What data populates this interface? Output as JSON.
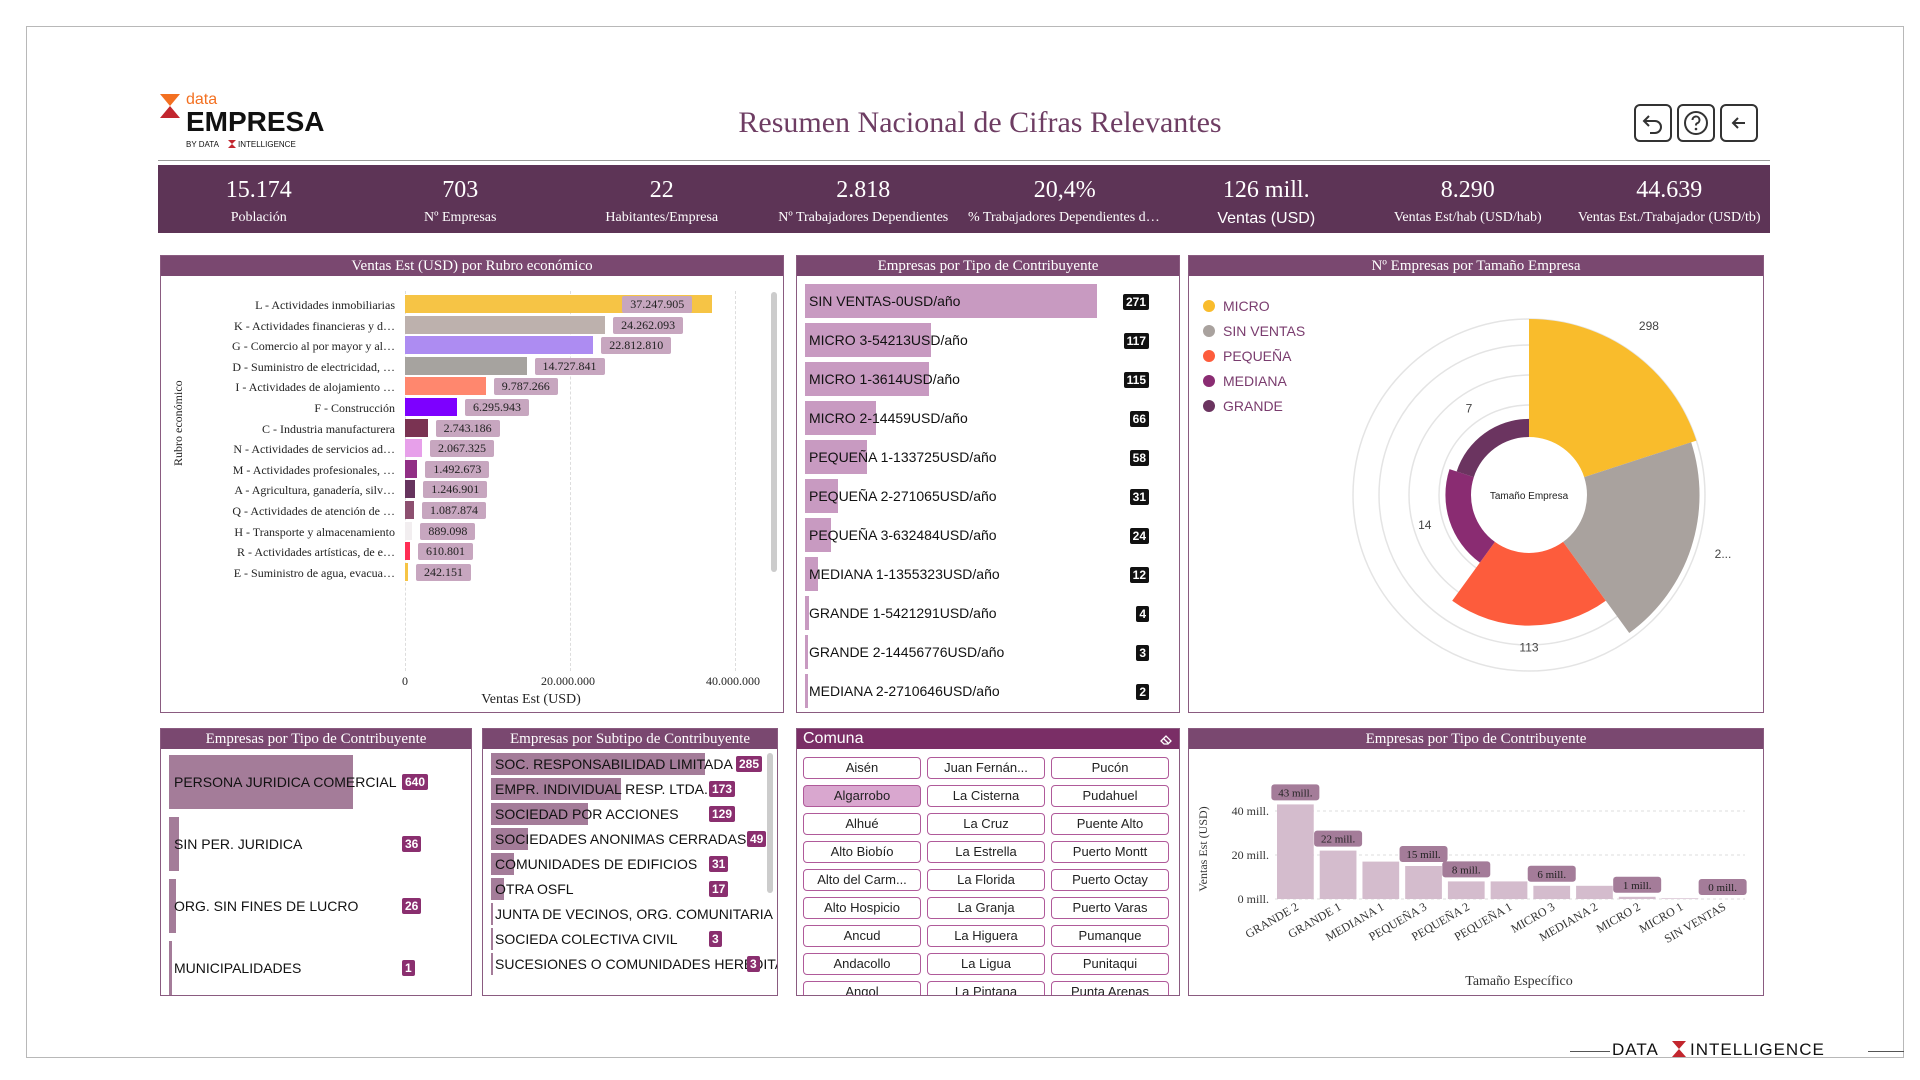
{
  "brand": {
    "logo_top": "data",
    "logo_main": "EMPRESA",
    "logo_by": "BY DATA INTELLIGENCE",
    "footer": "DATA INTELLIGENCE"
  },
  "header": {
    "title": "Resumen Nacional de Cifras Relevantes",
    "buttons": [
      "undo-icon",
      "help-icon",
      "back-arrow-icon"
    ]
  },
  "kpis": [
    {
      "value": "15.174",
      "label": "Población"
    },
    {
      "value": "703",
      "label": "Nº Empresas"
    },
    {
      "value": "22",
      "label": "Habitantes/Empresa"
    },
    {
      "value": "2.818",
      "label": "Nº Trabajadores Dependientes"
    },
    {
      "value": "20,4%",
      "label": "% Trabajadores Dependientes de la Poblac…"
    },
    {
      "value": "126 mill.",
      "label": "Ventas (USD)"
    },
    {
      "value": "8.290",
      "label": "Ventas Est/hab (USD/hab)"
    },
    {
      "value": "44.639",
      "label": "Ventas Est./Trabajador (USD/tb)"
    }
  ],
  "panel_rubro": {
    "title": "Ventas Est (USD) por Rubro económico",
    "ylabel": "Rubro económico",
    "xlabel": "Ventas Est (USD)",
    "ticks": [
      "0",
      "20.000.000",
      "40.000.000"
    ]
  },
  "panel_contrib": {
    "title": "Empresas por Tipo de Contribuyente"
  },
  "panel_tamano": {
    "title": "Nº Empresas por Tamaño Empresa",
    "center_label": "Tamaño Empresa"
  },
  "panel_tipo": {
    "title": "Empresas por Tipo de Contribuyente"
  },
  "panel_subtipo": {
    "title": "Empresas por Subtipo de Contribuyente"
  },
  "panel_comuna": {
    "title": "Comuna",
    "selected": "Algarrobo",
    "items": [
      "Aisén",
      "Juan Fernán...",
      "Pucón",
      "Algarrobo",
      "La Cisterna",
      "Pudahuel",
      "Alhué",
      "La Cruz",
      "Puente Alto",
      "Alto Biobío",
      "La Estrella",
      "Puerto Montt",
      "Alto del Carm...",
      "La Florida",
      "Puerto Octay",
      "Alto Hospicio",
      "La Granja",
      "Puerto Varas",
      "Ancud",
      "La Higuera",
      "Pumanque",
      "Andacollo",
      "La Ligua",
      "Punitaqui",
      "Angol",
      "La Pintana",
      "Punta Arenas"
    ]
  },
  "panel_ventas_tamano": {
    "title": "Empresas por Tipo de Contribuyente",
    "ylabel": "Ventas Est (USD)",
    "xlabel": "Tamaño Específico",
    "yticks": [
      "40 mill.",
      "20 mill.",
      "0 mill."
    ]
  },
  "chart_data": [
    {
      "type": "bar",
      "orientation": "horizontal",
      "title": "Ventas Est (USD) por Rubro económico",
      "xlabel": "Ventas Est (USD)",
      "ylabel": "Rubro económico",
      "xlim": [
        0,
        40000000
      ],
      "categories": [
        "L - Actividades inmobiliarias",
        "K - Actividades financieras y d…",
        "G - Comercio al por mayor y al…",
        "D - Suministro de electricidad, …",
        "I - Actividades de alojamiento …",
        "F - Construcción",
        "C - Industria manufacturera",
        "N - Actividades de servicios ad…",
        "M - Actividades profesionales, …",
        "A - Agricultura, ganadería, silv…",
        "Q - Actividades de atención de …",
        "H - Transporte y almacenamiento",
        "R - Actividades artísticas, de e…",
        "E - Suministro de agua, evacua…"
      ],
      "values": [
        37247905,
        24262093,
        22812810,
        14727841,
        9787266,
        6295943,
        2743186,
        2067325,
        1492673,
        1246901,
        1087874,
        889098,
        610801,
        242151
      ],
      "labels": [
        "37.247.905",
        "24.262.093",
        "22.812.810",
        "14.727.841",
        "9.787.266",
        "6.295.943",
        "2.743.186",
        "2.067.325",
        "1.492.673",
        "1.246.901",
        "1.087.874",
        "889.098",
        "610.801",
        "242.151"
      ],
      "colors": [
        "#f6c445",
        "#bdb1ad",
        "#ad8cf2",
        "#a6a39f",
        "#ff876e",
        "#7d00ff",
        "#7a3352",
        "#e7a0ea",
        "#912f85",
        "#66345e",
        "#8d5070",
        "#f2eef0",
        "#ff2e55",
        "#f6c445"
      ]
    },
    {
      "type": "bar",
      "orientation": "horizontal",
      "title": "Empresas por Tipo de Contribuyente",
      "categories": [
        "SIN VENTAS-0USD/año",
        "MICRO 3-54213USD/año",
        "MICRO 1-3614USD/año",
        "MICRO 2-14459USD/año",
        "PEQUEÑA 1-133725USD/año",
        "PEQUEÑA 2-271065USD/año",
        "PEQUEÑA 3-632484USD/año",
        "MEDIANA 1-1355323USD/año",
        "GRANDE 1-5421291USD/año",
        "GRANDE 2-14456776USD/año",
        "MEDIANA 2-2710646USD/año"
      ],
      "values": [
        271,
        117,
        115,
        66,
        58,
        31,
        24,
        12,
        4,
        3,
        2
      ]
    },
    {
      "type": "pie",
      "subtype": "polar",
      "title": "Nº Empresas por Tamaño Empresa",
      "categories": [
        "MICRO",
        "SIN VENTAS",
        "PEQUEÑA",
        "MEDIANA",
        "GRANDE"
      ],
      "values": [
        298,
        271,
        113,
        14,
        7
      ],
      "labels": [
        "298",
        "2...",
        "113",
        "14",
        "7"
      ],
      "colors": [
        "#f9bc2c",
        "#a9a29e",
        "#fd5c3c",
        "#8a2c72",
        "#6b3460"
      ],
      "legend": "top-left"
    },
    {
      "type": "bar",
      "orientation": "horizontal",
      "title": "Empresas por Tipo de Contribuyente",
      "categories": [
        "PERSONA JURIDICA COMERCIAL",
        "SIN PER. JURIDICA",
        "ORG. SIN FINES DE LUCRO",
        "MUNICIPALIDADES"
      ],
      "values": [
        640,
        36,
        26,
        1
      ]
    },
    {
      "type": "bar",
      "orientation": "horizontal",
      "title": "Empresas por Subtipo de Contribuyente",
      "categories": [
        "SOC. RESPONSABILIDAD LIMITADA",
        "EMPR. INDIVIDUAL RESP. LTDA.",
        "SOCIEDAD POR ACCIONES",
        "SOCIEDADES ANONIMAS CERRADAS",
        "COMUNIDADES DE EDIFICIOS",
        "OTRA OSFL",
        "JUNTA DE VECINOS, ORG. COMUNITARIA",
        "SOCIEDA COLECTIVA CIVIL",
        "SUCESIONES O COMUNIDADES HEREDITARIAS"
      ],
      "values": [
        285,
        173,
        129,
        49,
        31,
        17,
        null,
        3,
        3
      ],
      "labels": [
        "285",
        "173",
        "129",
        "49",
        "31",
        "17",
        "",
        "3",
        "3"
      ]
    },
    {
      "type": "bar",
      "title": "Empresas por Tipo de Contribuyente",
      "xlabel": "Tamaño Específico",
      "ylabel": "Ventas Est (USD)",
      "ylim": [
        0,
        50
      ],
      "unit": "mill.",
      "categories": [
        "GRANDE 2",
        "GRANDE 1",
        "MEDIANA 1",
        "PEQUEÑA 3",
        "PEQUEÑA 2",
        "PEQUEÑA 1",
        "MICRO 3",
        "MEDIANA 2",
        "MICRO 2",
        "MICRO 1",
        "SIN VENTAS"
      ],
      "values": [
        43,
        22,
        17,
        15,
        8,
        8,
        6,
        6,
        1,
        0.3,
        0
      ],
      "labels": [
        "43 mill.",
        "22 mill.",
        "",
        "15 mill.",
        "8 mill.",
        "",
        "6 mill.",
        "",
        "1 mill.",
        "",
        "0 mill."
      ]
    }
  ]
}
